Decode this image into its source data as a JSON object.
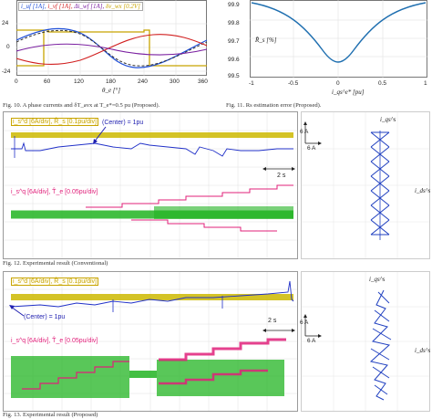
{
  "fig10": {
    "yticks": [
      "24",
      "0",
      "-24"
    ],
    "xticks": [
      "0",
      "60",
      "120",
      "180",
      "240",
      "300",
      "360"
    ],
    "xlabel": "θ_e [°]",
    "legend": [
      {
        "text": "i_uf [1A],",
        "color": "#1f4fd8"
      },
      {
        "text": "i_vf [1A],",
        "color": "#d11f1f"
      },
      {
        "text": "Δi_wf [1A],",
        "color": "#7a1fa0"
      },
      {
        "text": "δv_wx [0.2V]",
        "color": "#c8a400"
      }
    ],
    "caption": "Fig. 10. A phase currents and δT_avx at T_e*=0.5 pu (Proposed)."
  },
  "fig11": {
    "yticks": [
      "99.9",
      "99.8",
      "99.7",
      "99.6",
      "99.5"
    ],
    "xticks": [
      "-1",
      "-0.5",
      "0",
      "0.5",
      "1"
    ],
    "ylabel": "R̂_s [%]",
    "xlabel": "i_qs^e* [pu]",
    "caption": "Fig. 11. Rs estimation error (Proposed)."
  },
  "fig12": {
    "top_label": "i_s^d [6A/div], R̂_s [0.1pu/div]",
    "center_label": "(Center) = 1pu",
    "bottom_label": "i_s^q [6A/div], T̂_e [0.05pu/div]",
    "time_label": "2 s",
    "scale_label": "6 A",
    "scale_label2": "6 A",
    "iqs_label": "i_qs^s",
    "ids_label": "i_ds^s",
    "caption": "Fig. 12. Experimental result (Conventional)"
  },
  "fig13": {
    "top_label": "i_s^d [6A/div], R̂_s [0.1pu/div]",
    "center_label": "(Center) = 1pu",
    "bottom_label": "i_s^q [6A/div], T̂_e [0.05pu/div]",
    "time_label": "2 s",
    "scale_label": "6 A",
    "scale_label2": "6 A",
    "iqs_label": "i_qs^s",
    "ids_label": "i_ds^s",
    "caption": "Fig. 13. Experimental result (Proposed)"
  }
}
